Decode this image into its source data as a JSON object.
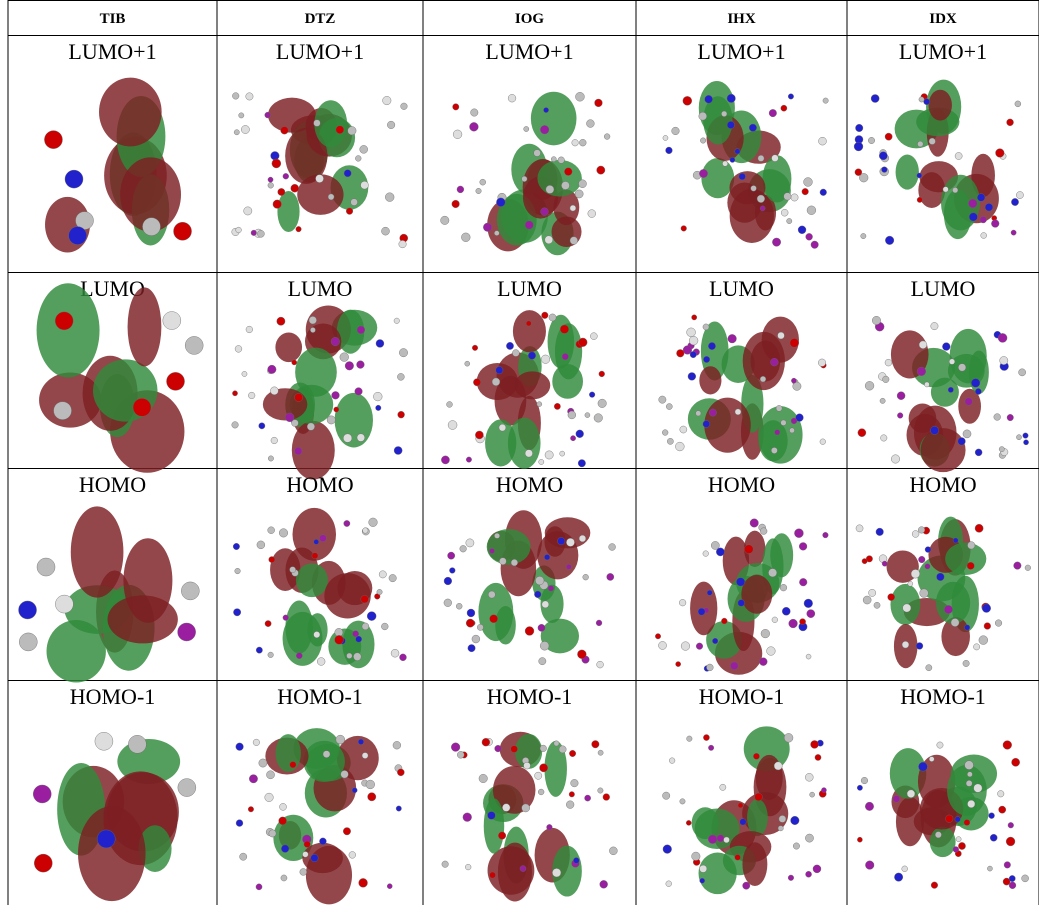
{
  "table": {
    "header": [
      "TIB",
      "DTZ",
      "IOG",
      "IHX",
      "IDX"
    ],
    "rows": [
      [
        "LUMO+1",
        "LUMO+1",
        "LUMO+1",
        "LUMO+1",
        "LUMO+1"
      ],
      [
        "LUMO",
        "LUMO",
        "LUMO",
        "LUMO",
        "LUMO"
      ],
      [
        "HOMO",
        "HOMO",
        "HOMO",
        "HOMO",
        "HOMO"
      ],
      [
        "HOMO-1",
        "HOMO-1",
        "HOMO-1",
        "HOMO-1",
        "HOMO-1"
      ]
    ]
  }
}
